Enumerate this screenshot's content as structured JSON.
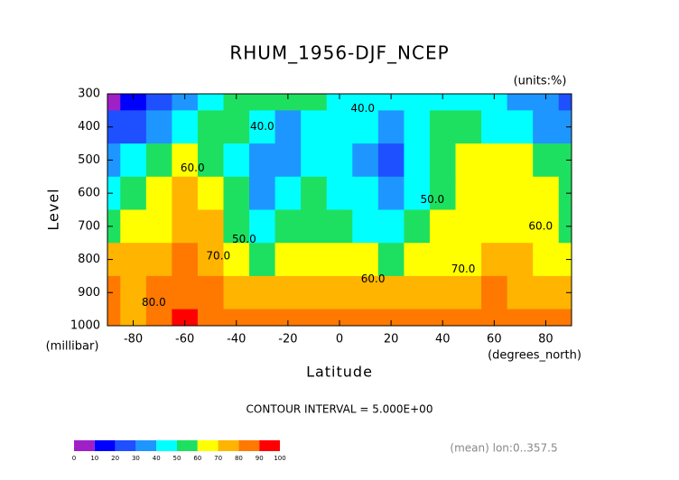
{
  "chart_data": {
    "type": "contour",
    "title": "RHUM_1956-DJF_NCEP",
    "units_label": "(units:%)",
    "x_label": "Latitude",
    "x_units": "(degrees_north)",
    "y_label": "Level",
    "y_units": "(millibar)",
    "footer": "CONTOUR INTERVAL = 5.000E+00",
    "note": "(mean) lon:0..357.5",
    "x": [
      -90,
      -80,
      -70,
      -60,
      -50,
      -40,
      -30,
      -20,
      -10,
      0,
      10,
      20,
      30,
      40,
      50,
      60,
      70,
      80,
      90
    ],
    "y": [
      300,
      400,
      500,
      600,
      700,
      800,
      900,
      1000
    ],
    "z": [
      [
        8,
        15,
        25,
        35,
        45,
        55,
        55,
        55,
        52,
        48,
        46,
        46,
        45,
        45,
        45,
        42,
        38,
        30,
        25
      ],
      [
        20,
        28,
        38,
        48,
        55,
        50,
        40,
        38,
        48,
        45,
        40,
        37,
        45,
        55,
        50,
        45,
        42,
        38,
        35
      ],
      [
        32,
        42,
        55,
        62,
        58,
        48,
        36,
        38,
        48,
        47,
        38,
        29,
        42,
        56,
        65,
        68,
        60,
        55,
        52
      ],
      [
        45,
        52,
        62,
        72,
        65,
        50,
        38,
        42,
        50,
        48,
        40,
        32,
        45,
        58,
        67,
        68,
        66,
        62,
        58
      ],
      [
        55,
        60,
        68,
        76,
        70,
        58,
        45,
        50,
        55,
        53,
        45,
        42,
        50,
        60,
        66,
        68,
        66,
        60,
        58
      ],
      [
        72,
        75,
        72,
        82,
        78,
        65,
        58,
        62,
        65,
        65,
        62,
        58,
        60,
        62,
        68,
        72,
        70,
        65,
        62
      ],
      [
        80,
        70,
        82,
        88,
        85,
        75,
        72,
        76,
        78,
        78,
        78,
        76,
        72,
        70,
        76,
        80,
        78,
        75,
        72
      ],
      [
        82,
        78,
        86,
        92,
        88,
        82,
        84,
        88,
        88,
        86,
        86,
        88,
        85,
        82,
        86,
        88,
        86,
        84,
        80
      ]
    ],
    "xlim": [
      -90,
      90
    ],
    "xticks": [
      -80,
      -60,
      -40,
      -20,
      0,
      20,
      40,
      60,
      80
    ],
    "ylim": [
      1000,
      300
    ],
    "yticks": [
      300,
      400,
      500,
      600,
      700,
      800,
      900,
      1000
    ],
    "colorbar": {
      "levels": [
        0,
        10,
        20,
        30,
        40,
        50,
        60,
        70,
        80,
        90,
        100
      ],
      "colors": [
        "#a020c8",
        "#0000ff",
        "#1e50ff",
        "#1e96ff",
        "#00ffff",
        "#1ee060",
        "#ffff00",
        "#ffb400",
        "#ff7800",
        "#ff0000"
      ]
    },
    "contour_labels": [
      {
        "value": 40,
        "label": "40.0",
        "x": -30,
        "y": 400
      },
      {
        "value": 40,
        "label": "40.0",
        "x": 9,
        "y": 345
      },
      {
        "value": 60,
        "label": "60.0",
        "x": -57,
        "y": 525
      },
      {
        "value": 50,
        "label": "50.0",
        "x": 36,
        "y": 620
      },
      {
        "value": 50,
        "label": "50.0",
        "x": -37,
        "y": 740
      },
      {
        "value": 70,
        "label": "70.0",
        "x": -47,
        "y": 790
      },
      {
        "value": 80,
        "label": "80.0",
        "x": -72,
        "y": 930
      },
      {
        "value": 60,
        "label": "60.0",
        "x": 13,
        "y": 860
      },
      {
        "value": 70,
        "label": "70.0",
        "x": 48,
        "y": 830
      },
      {
        "value": 60,
        "label": "60.0",
        "x": 78,
        "y": 700
      }
    ]
  }
}
